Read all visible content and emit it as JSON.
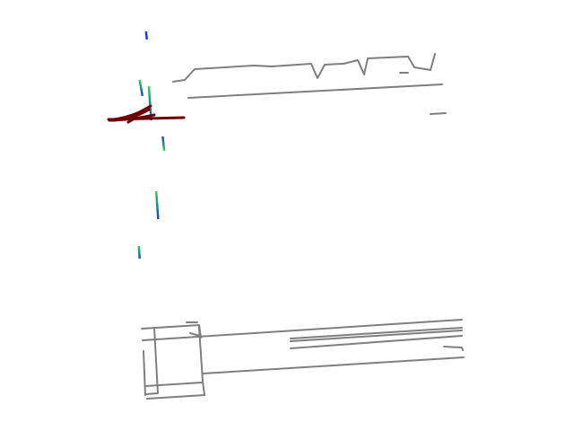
{
  "colors": {
    "background": "#ffffff",
    "road_lines": "#7f7f7f",
    "trajectory_future": "#6b0000",
    "track_start": "#1a3fd6",
    "track_end": "#19e04a"
  },
  "legend": {}
}
